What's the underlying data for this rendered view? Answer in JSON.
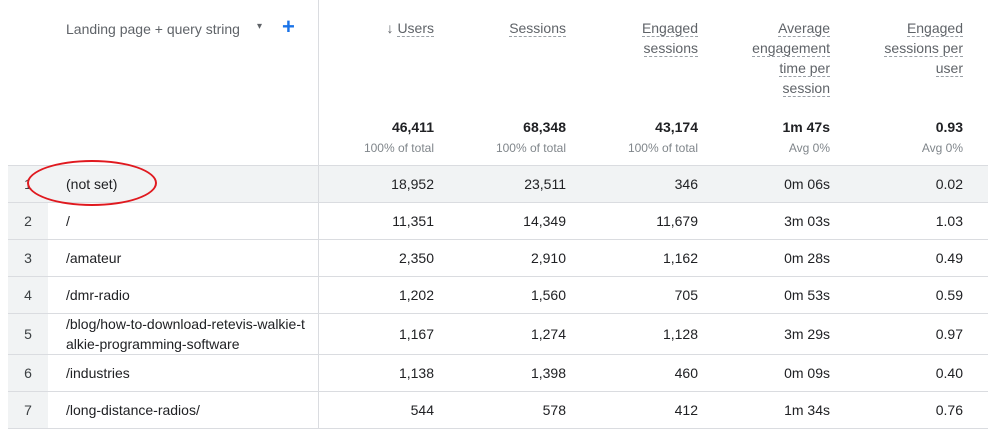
{
  "dimension": {
    "label": "Landing page + query string",
    "caret": "▾",
    "add": "+"
  },
  "metrics": [
    {
      "key": "users",
      "name_lines": [
        "Users"
      ],
      "sort_arrow": "↓",
      "total": "46,411",
      "pct": "100% of total"
    },
    {
      "key": "sessions",
      "name_lines": [
        "Sessions"
      ],
      "sort_arrow": "",
      "total": "68,348",
      "pct": "100% of total"
    },
    {
      "key": "engaged",
      "name_lines": [
        "Engaged",
        "sessions"
      ],
      "sort_arrow": "",
      "total": "43,174",
      "pct": "100% of total"
    },
    {
      "key": "avg_eng",
      "name_lines": [
        "Average",
        "engagement",
        "time per",
        "session"
      ],
      "sort_arrow": "",
      "total": "1m 47s",
      "pct": "Avg 0%"
    },
    {
      "key": "eng_per_user",
      "name_lines": [
        "Engaged",
        "sessions per",
        "user"
      ],
      "sort_arrow": "",
      "total": "0.93",
      "pct": "Avg 0%"
    }
  ],
  "rows": [
    {
      "num": "1",
      "page": "(not set)",
      "users": "18,952",
      "sessions": "23,511",
      "engaged": "346",
      "avg_eng": "0m 06s",
      "eng_per_user": "0.02"
    },
    {
      "num": "2",
      "page": "/",
      "users": "11,351",
      "sessions": "14,349",
      "engaged": "11,679",
      "avg_eng": "3m 03s",
      "eng_per_user": "1.03"
    },
    {
      "num": "3",
      "page": "/amateur",
      "users": "2,350",
      "sessions": "2,910",
      "engaged": "1,162",
      "avg_eng": "0m 28s",
      "eng_per_user": "0.49"
    },
    {
      "num": "4",
      "page": "/dmr-radio",
      "users": "1,202",
      "sessions": "1,560",
      "engaged": "705",
      "avg_eng": "0m 53s",
      "eng_per_user": "0.59"
    },
    {
      "num": "5",
      "page": "/blog/how-to-download-retevis-walkie-talkie-programming-software",
      "users": "1,167",
      "sessions": "1,274",
      "engaged": "1,128",
      "avg_eng": "3m 29s",
      "eng_per_user": "0.97"
    },
    {
      "num": "6",
      "page": "/industries",
      "users": "1,138",
      "sessions": "1,398",
      "engaged": "460",
      "avg_eng": "0m 09s",
      "eng_per_user": "0.40"
    },
    {
      "num": "7",
      "page": "/long-distance-radios/",
      "users": "544",
      "sessions": "578",
      "engaged": "412",
      "avg_eng": "1m 34s",
      "eng_per_user": "0.76"
    }
  ],
  "annotation": {
    "color": "#e0191f",
    "target_row": "1"
  }
}
